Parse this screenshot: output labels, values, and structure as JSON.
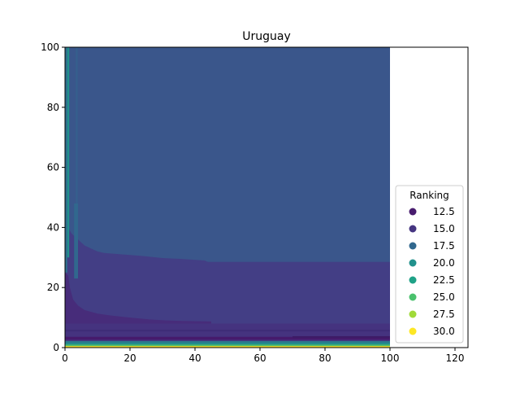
{
  "chart_data": {
    "type": "scatter",
    "title": "Uruguay",
    "xlabel": "",
    "ylabel": "",
    "xlim": [
      0,
      124
    ],
    "ylim": [
      0,
      100
    ],
    "x_ticks": [
      "0",
      "20",
      "40",
      "60",
      "80",
      "100",
      "120"
    ],
    "y_ticks": [
      "0",
      "20",
      "40",
      "60",
      "80",
      "100"
    ],
    "grid": false,
    "legend": {
      "title": "Ranking",
      "placement": "lower-right",
      "entries": [
        {
          "label": "12.5",
          "color": "#481c6e"
        },
        {
          "label": "15.0",
          "color": "#453581"
        },
        {
          "label": "17.5",
          "color": "#31688e"
        },
        {
          "label": "20.0",
          "color": "#21918c"
        },
        {
          "label": "22.5",
          "color": "#1fa287"
        },
        {
          "label": "25.0",
          "color": "#4ac16d"
        },
        {
          "label": "27.5",
          "color": "#a0da39"
        },
        {
          "label": "30.0",
          "color": "#fde725"
        }
      ]
    },
    "regions": [
      {
        "ranking": 17.0,
        "color": "#3a568b",
        "x_range": [
          0,
          100
        ],
        "y_range": [
          0,
          100
        ]
      },
      {
        "ranking": 14.5,
        "color": "#433e85",
        "x_range": [
          0,
          100
        ],
        "y_range": [
          0,
          28.5
        ]
      },
      {
        "ranking": 14.0,
        "color": "#45337f",
        "x_range": [
          0,
          100
        ],
        "y_range": [
          2,
          8
        ]
      },
      {
        "ranking": 12.5,
        "color": "#461a6c",
        "x_range": [
          0,
          100
        ],
        "y_range": [
          2.6,
          3.6
        ]
      },
      {
        "ranking": 20.0,
        "color": "#21918c",
        "x_range": [
          0,
          100
        ],
        "y_range": [
          1.0,
          1.6
        ]
      },
      {
        "ranking": 25.0,
        "color": "#4ac16d",
        "x_range": [
          0,
          100
        ],
        "y_range": [
          0.5,
          1.0
        ]
      },
      {
        "ranking": 30.0,
        "color": "#fde725",
        "x_range": [
          0,
          100
        ],
        "y_range": [
          0,
          0.5
        ]
      }
    ]
  }
}
